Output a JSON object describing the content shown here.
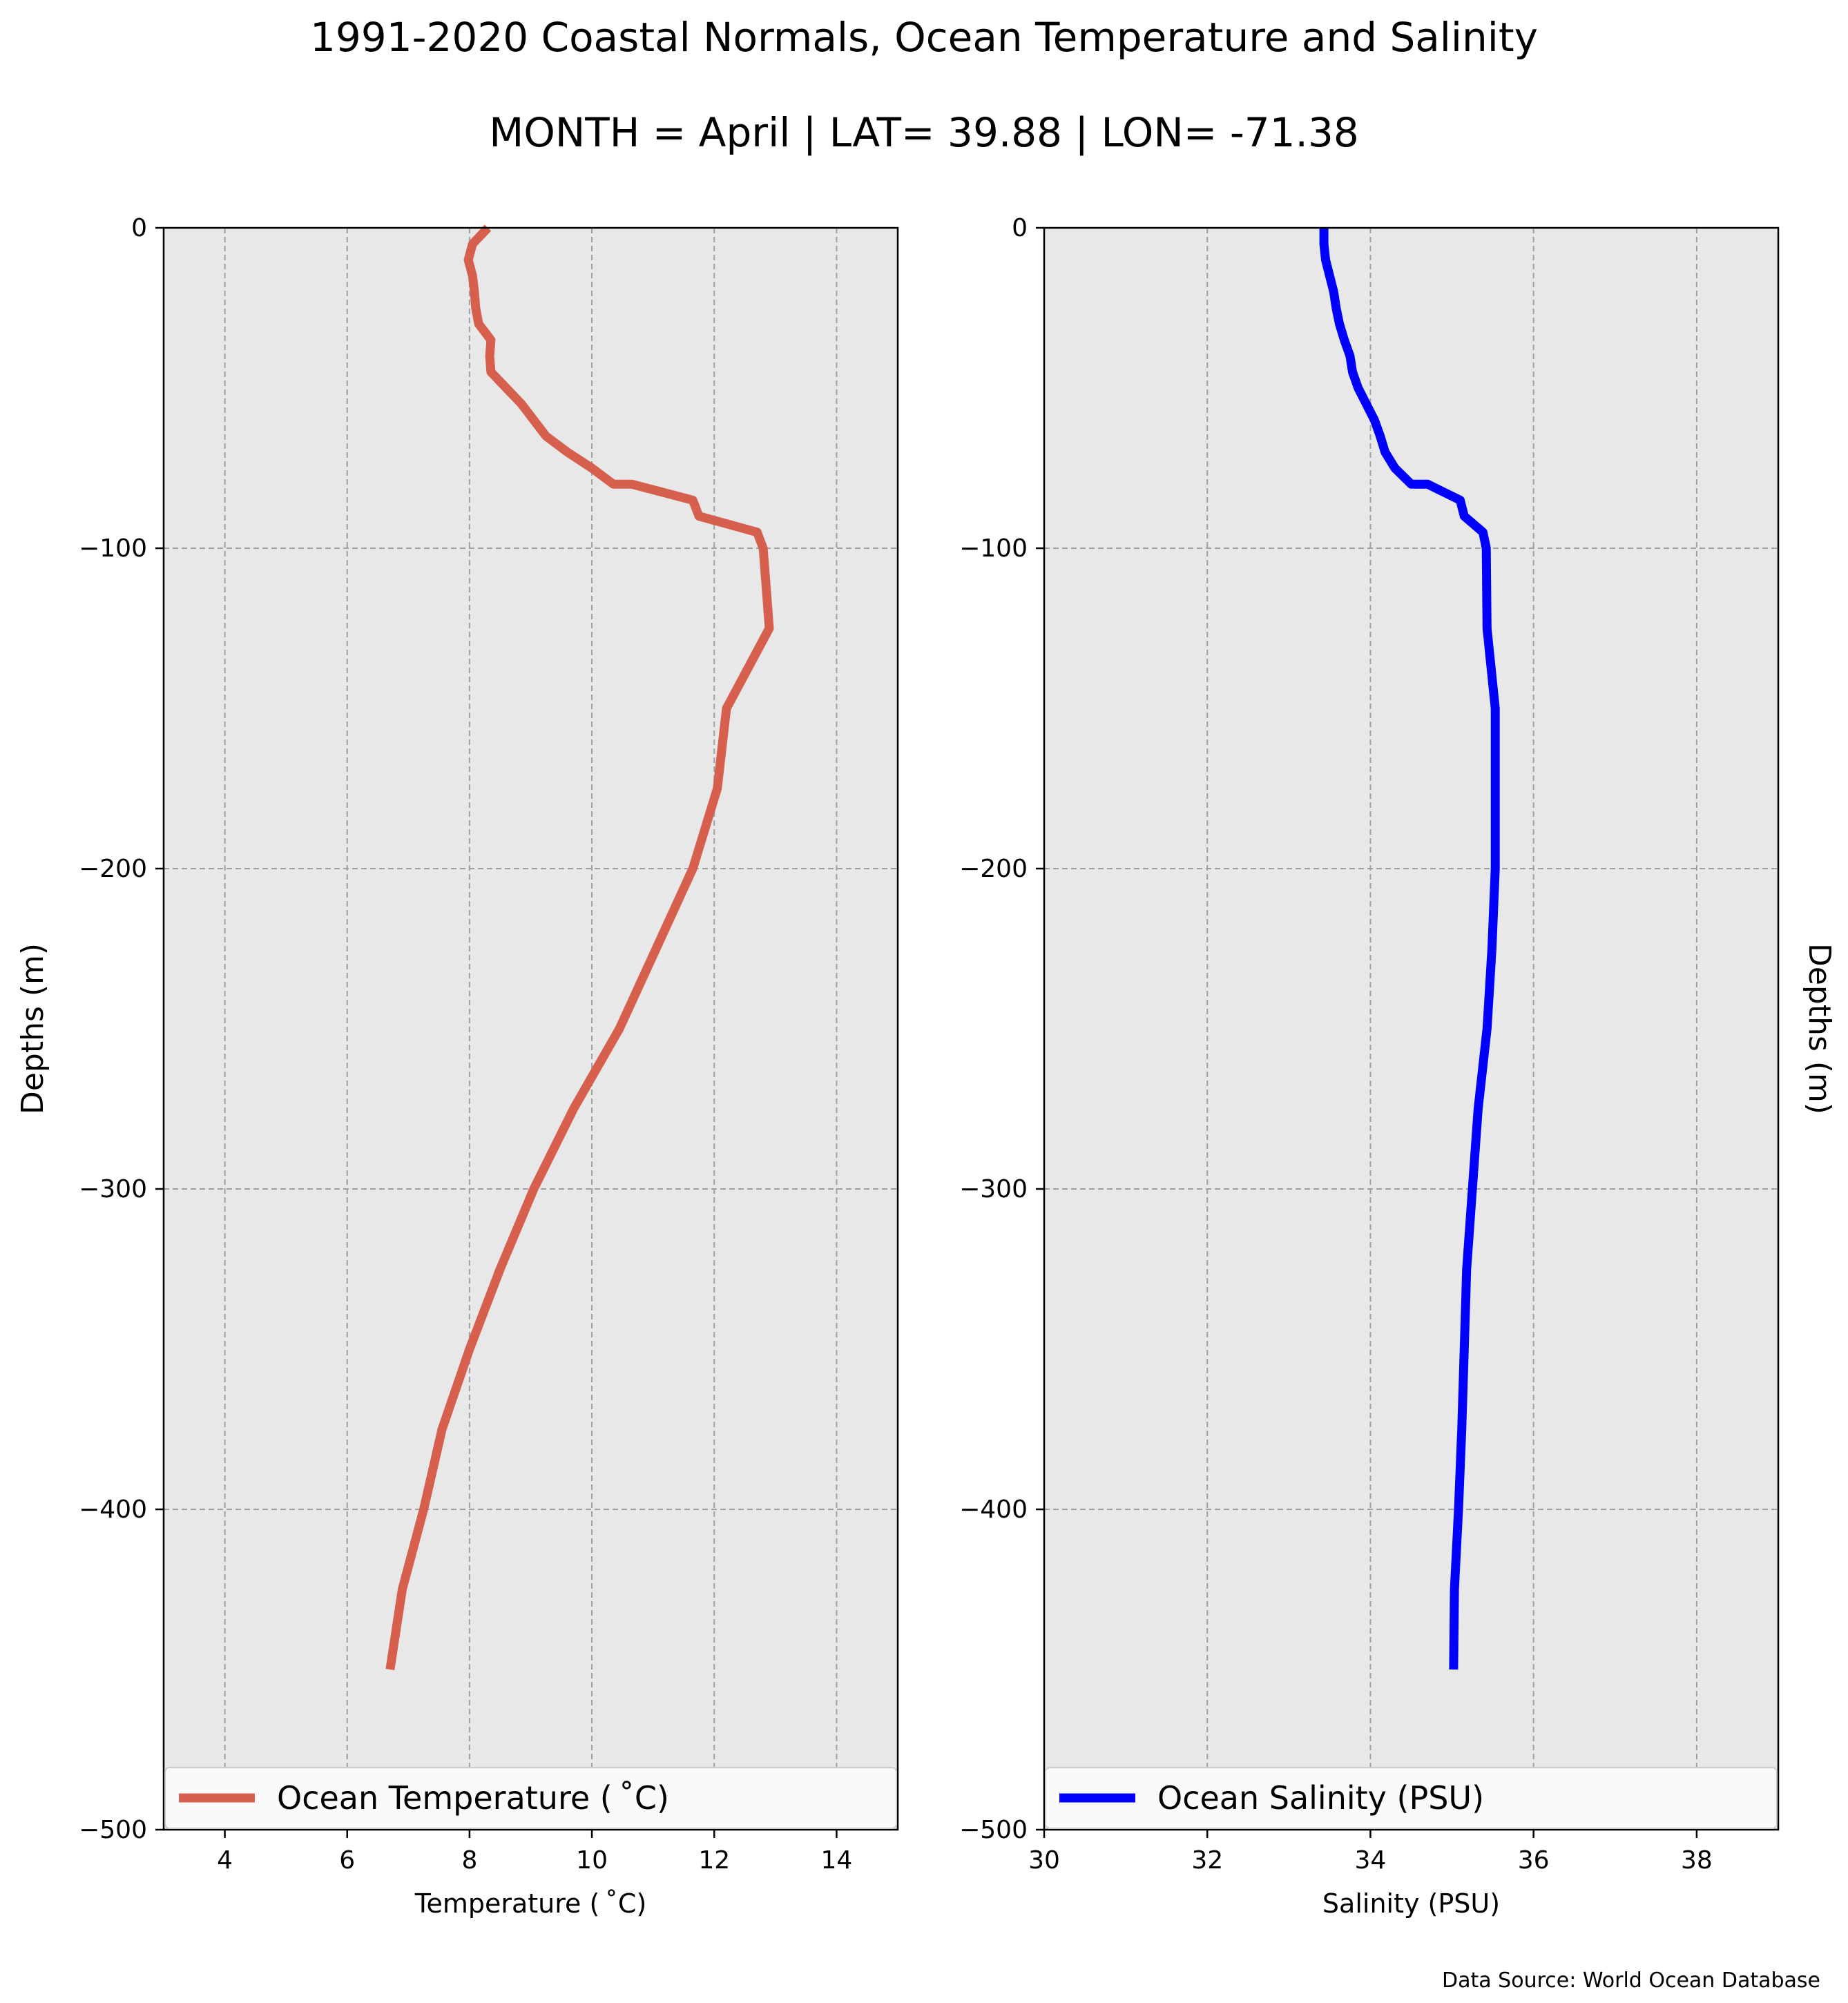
{
  "title": "1991-2020 Coastal Normals, Ocean Temperature and Salinity",
  "subtitle": "MONTH = April | LAT= 39.88 | LON= -71.38",
  "source": "Data Source: World Ocean Database",
  "colors": {
    "background": "#e8e8e8",
    "temperature": "#d6604d",
    "salinity": "#0000ff",
    "grid": "#a0a0a0"
  },
  "chart_data": [
    {
      "type": "line",
      "xlabel": "Temperature ( ˚C)",
      "ylabel": "Depths (m)",
      "xlim": [
        3,
        15
      ],
      "ylim": [
        -500,
        0
      ],
      "xticks": [
        4,
        6,
        8,
        10,
        12,
        14
      ],
      "xtick_labels": [
        "4",
        "6",
        "8",
        "10",
        "12",
        "14"
      ],
      "yticks": [
        0,
        -100,
        -200,
        -300,
        -400,
        -500
      ],
      "ytick_labels": [
        "0",
        "−100",
        "−200",
        "−300",
        "−400",
        "−500"
      ],
      "grid": true,
      "legend": "bottom",
      "series": [
        {
          "name": "Ocean Temperature ( ˚C)",
          "x": [
            8.3,
            8.05,
            7.98,
            8.05,
            8.08,
            8.1,
            8.15,
            8.35,
            8.33,
            8.35,
            8.6,
            8.85,
            9.05,
            9.25,
            9.6,
            10.0,
            10.35,
            10.65,
            11.65,
            11.75,
            12.7,
            12.8,
            12.9,
            12.2,
            12.05,
            11.65,
            11.05,
            10.45,
            9.7,
            9.05,
            8.5,
            8.0,
            7.55,
            7.25,
            6.9,
            6.7
          ],
          "y": [
            0,
            -5,
            -10,
            -15,
            -20,
            -25,
            -30,
            -35,
            -40,
            -45,
            -50,
            -55,
            -60,
            -65,
            -70,
            -75,
            -80,
            -80,
            -85,
            -90,
            -95,
            -100,
            -125,
            -150,
            -175,
            -200,
            -225,
            -250,
            -275,
            -300,
            -325,
            -350,
            -375,
            -400,
            -425,
            -450
          ]
        }
      ]
    },
    {
      "type": "line",
      "xlabel": "Salinity (PSU)",
      "ylabel": "Depths (m)",
      "xlim": [
        30,
        39
      ],
      "ylim": [
        -500,
        0
      ],
      "xticks": [
        30,
        32,
        34,
        36,
        38
      ],
      "xtick_labels": [
        "30",
        "32",
        "34",
        "36",
        "38"
      ],
      "yticks": [
        0,
        -100,
        -200,
        -300,
        -400,
        -500
      ],
      "ytick_labels": [
        "0",
        "−100",
        "−200",
        "−300",
        "−400",
        "−500"
      ],
      "grid": true,
      "legend": "bottom",
      "series": [
        {
          "name": "Ocean Salinity (PSU)",
          "x": [
            33.43,
            33.43,
            33.45,
            33.5,
            33.55,
            33.58,
            33.62,
            33.68,
            33.75,
            33.78,
            33.85,
            33.95,
            34.05,
            34.12,
            34.18,
            34.3,
            34.5,
            34.7,
            35.1,
            35.15,
            35.38,
            35.42,
            35.43,
            35.53,
            35.53,
            35.53,
            35.49,
            35.43,
            35.32,
            35.25,
            35.18,
            35.15,
            35.12,
            35.08,
            35.03,
            35.02
          ],
          "y": [
            0,
            -5,
            -10,
            -15,
            -20,
            -25,
            -30,
            -35,
            -40,
            -45,
            -50,
            -55,
            -60,
            -65,
            -70,
            -75,
            -80,
            -80,
            -85,
            -90,
            -95,
            -100,
            -125,
            -150,
            -175,
            -200,
            -225,
            -250,
            -275,
            -300,
            -325,
            -350,
            -375,
            -400,
            -425,
            -450
          ]
        }
      ]
    }
  ]
}
